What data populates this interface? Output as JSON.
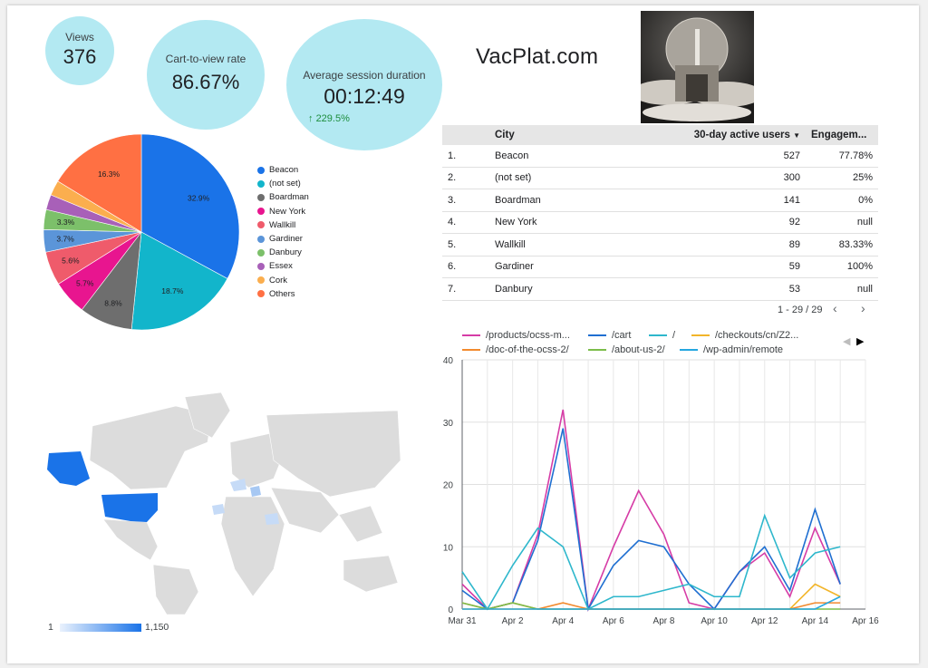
{
  "scorecards": {
    "views": {
      "label": "Views",
      "value": "376"
    },
    "cart_rate": {
      "label": "Cart-to-view rate",
      "value": "86.67%"
    },
    "session": {
      "label": "Average session duration",
      "value": "00:12:49",
      "delta": "229.5%"
    }
  },
  "brand": {
    "name": "VacPlat.com"
  },
  "table": {
    "headers": {
      "city": "City",
      "users": "30-day active users",
      "engagement": "Engagem..."
    },
    "rows": [
      {
        "rank": "1.",
        "city": "Beacon",
        "users": "527",
        "engagement": "77.78%"
      },
      {
        "rank": "2.",
        "city": "(not set)",
        "users": "300",
        "engagement": "25%"
      },
      {
        "rank": "3.",
        "city": "Boardman",
        "users": "141",
        "engagement": "0%"
      },
      {
        "rank": "4.",
        "city": "New York",
        "users": "92",
        "engagement": "null"
      },
      {
        "rank": "5.",
        "city": "Wallkill",
        "users": "89",
        "engagement": "83.33%"
      },
      {
        "rank": "6.",
        "city": "Gardiner",
        "users": "59",
        "engagement": "100%"
      },
      {
        "rank": "7.",
        "city": "Danbury",
        "users": "53",
        "engagement": "null"
      }
    ],
    "pagination": "1 - 29 / 29"
  },
  "pie": {
    "slices": [
      {
        "name": "Beacon",
        "value": 32.9,
        "color": "#1a73e8",
        "label": "32.9%"
      },
      {
        "name": "(not set)",
        "value": 18.7,
        "color": "#12b5cb",
        "label": "18.7%"
      },
      {
        "name": "Boardman",
        "value": 8.8,
        "color": "#6e6e6e",
        "label": "8.8%"
      },
      {
        "name": "New York",
        "value": 5.7,
        "color": "#e8158f",
        "label": "5.7%"
      },
      {
        "name": "Wallkill",
        "value": 5.6,
        "color": "#ef5b6b",
        "label": "5.6%"
      },
      {
        "name": "Gardiner",
        "value": 3.7,
        "color": "#5b95d9",
        "label": "3.7%"
      },
      {
        "name": "Danbury",
        "value": 3.3,
        "color": "#7cc06a",
        "label": "3.3%"
      },
      {
        "name": "Essex",
        "value": 2.5,
        "color": "#a860b8",
        "label": ""
      },
      {
        "name": "Cork",
        "value": 2.5,
        "color": "#fbae4e",
        "label": ""
      },
      {
        "name": "Others",
        "value": 16.3,
        "color": "#ff7043",
        "label": "16.3%"
      }
    ]
  },
  "map": {
    "scale_min": "1",
    "scale_max": "1,150",
    "scale_color": "#1a73e8"
  },
  "chart_data": {
    "type": "line",
    "x": [
      "Mar 31",
      "Apr 1",
      "Apr 2",
      "Apr 3",
      "Apr 4",
      "Apr 5",
      "Apr 6",
      "Apr 7",
      "Apr 8",
      "Apr 9",
      "Apr 10",
      "Apr 11",
      "Apr 12",
      "Apr 13",
      "Apr 14",
      "Apr 15"
    ],
    "xticks": [
      "Mar 31",
      "Apr 2",
      "Apr 4",
      "Apr 6",
      "Apr 8",
      "Apr 10",
      "Apr 12",
      "Apr 14",
      "Apr 16"
    ],
    "ylim": [
      0,
      40
    ],
    "yticks": [
      "0",
      "10",
      "20",
      "30",
      "40"
    ],
    "series": [
      {
        "name": "/products/ocss-m...",
        "color": "#d63ca6",
        "values": [
          4,
          0,
          1,
          12,
          32,
          0,
          10,
          19,
          12,
          1,
          0,
          6,
          9,
          2,
          13,
          4
        ]
      },
      {
        "name": "/cart",
        "color": "#1f6fd1",
        "values": [
          3,
          0,
          1,
          11,
          29,
          0,
          7,
          11,
          10,
          4,
          0,
          6,
          10,
          3,
          16,
          4
        ]
      },
      {
        "name": "/",
        "color": "#2eb7cc",
        "values": [
          6,
          0,
          7,
          13,
          10,
          0,
          2,
          2,
          3,
          4,
          2,
          2,
          15,
          5,
          9,
          10
        ]
      },
      {
        "name": "/checkouts/cn/Z2...",
        "color": "#f2b52a",
        "values": [
          0,
          0,
          0,
          0,
          0,
          0,
          0,
          0,
          0,
          0,
          0,
          0,
          0,
          0,
          4,
          2
        ]
      },
      {
        "name": "/doc-of-the-ocss-2/",
        "color": "#f28a2e",
        "values": [
          1,
          0,
          1,
          0,
          1,
          0,
          0,
          0,
          0,
          0,
          0,
          0,
          0,
          0,
          1,
          1
        ]
      },
      {
        "name": "/about-us-2/",
        "color": "#7cbd4a",
        "values": [
          1,
          0,
          1,
          0,
          0,
          0,
          0,
          0,
          0,
          0,
          0,
          0,
          0,
          0,
          0,
          0
        ]
      },
      {
        "name": "/wp-admin/remote",
        "color": "#25a7e0",
        "values": [
          0,
          0,
          0,
          0,
          0,
          0,
          0,
          0,
          0,
          0,
          0,
          0,
          0,
          0,
          0,
          2
        ]
      }
    ]
  }
}
